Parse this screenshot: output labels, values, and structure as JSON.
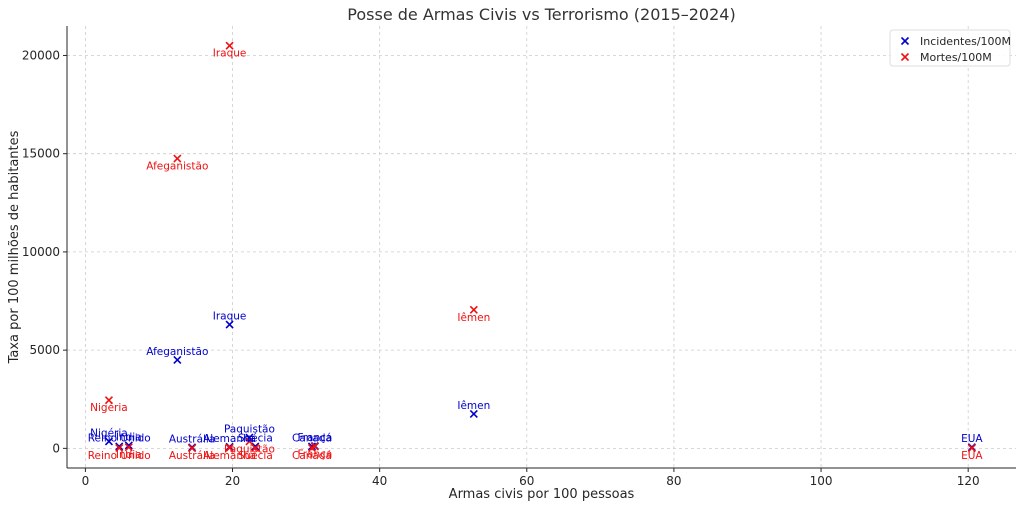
{
  "chart_data": {
    "type": "scatter",
    "title": "Posse de Armas Civis vs Terrorismo (2015–2024)",
    "xlabel": "Armas civis por 100 pessoas",
    "ylabel": "Taxa por 100 milhões de habitantes",
    "xlim": [
      -2.5,
      126.5
    ],
    "ylim": [
      -1000,
      21500
    ],
    "xticks": [
      0,
      20,
      40,
      60,
      80,
      100,
      120
    ],
    "yticks": [
      0,
      5000,
      10000,
      15000,
      20000
    ],
    "grid": true,
    "legend_position": "top-right",
    "series": [
      {
        "name": "Incidentes/100M",
        "color": "#0000cc",
        "marker": "x",
        "label_placement": "above",
        "points": [
          {
            "label": "Iraque",
            "x": 19.6,
            "y": 6300
          },
          {
            "label": "Afeganistão",
            "x": 12.5,
            "y": 4500
          },
          {
            "label": "Iêmen",
            "x": 52.8,
            "y": 1750
          },
          {
            "label": "Nigéria",
            "x": 3.2,
            "y": 350
          },
          {
            "label": "Reino Unido",
            "x": 4.6,
            "y": 100
          },
          {
            "label": "Índia",
            "x": 5.9,
            "y": 150
          },
          {
            "label": "Austrália",
            "x": 14.5,
            "y": 50
          },
          {
            "label": "Alemanha",
            "x": 19.6,
            "y": 80
          },
          {
            "label": "Paquistão",
            "x": 22.3,
            "y": 550
          },
          {
            "label": "Suécia",
            "x": 23.1,
            "y": 100
          },
          {
            "label": "Canadá",
            "x": 30.8,
            "y": 100
          },
          {
            "label": "França",
            "x": 31.2,
            "y": 120
          },
          {
            "label": "EUA",
            "x": 120.5,
            "y": 60
          }
        ]
      },
      {
        "name": "Mortes/100M",
        "color": "#ee1111",
        "marker": "x",
        "label_placement": "below",
        "points": [
          {
            "label": "Iraque",
            "x": 19.6,
            "y": 20500
          },
          {
            "label": "Afeganistão",
            "x": 12.5,
            "y": 14750
          },
          {
            "label": "Iêmen",
            "x": 52.8,
            "y": 7050
          },
          {
            "label": "Nigéria",
            "x": 3.2,
            "y": 2450
          },
          {
            "label": "Reino Unido",
            "x": 4.6,
            "y": 20
          },
          {
            "label": "Índia",
            "x": 5.9,
            "y": 60
          },
          {
            "label": "Austrália",
            "x": 14.5,
            "y": 10
          },
          {
            "label": "Alemanha",
            "x": 19.6,
            "y": 30
          },
          {
            "label": "Paquistão",
            "x": 22.3,
            "y": 350
          },
          {
            "label": "Suécia",
            "x": 23.1,
            "y": 20
          },
          {
            "label": "Canadá",
            "x": 30.8,
            "y": 20
          },
          {
            "label": "França",
            "x": 31.2,
            "y": 90
          },
          {
            "label": "EUA",
            "x": 120.5,
            "y": 15
          }
        ]
      }
    ]
  }
}
